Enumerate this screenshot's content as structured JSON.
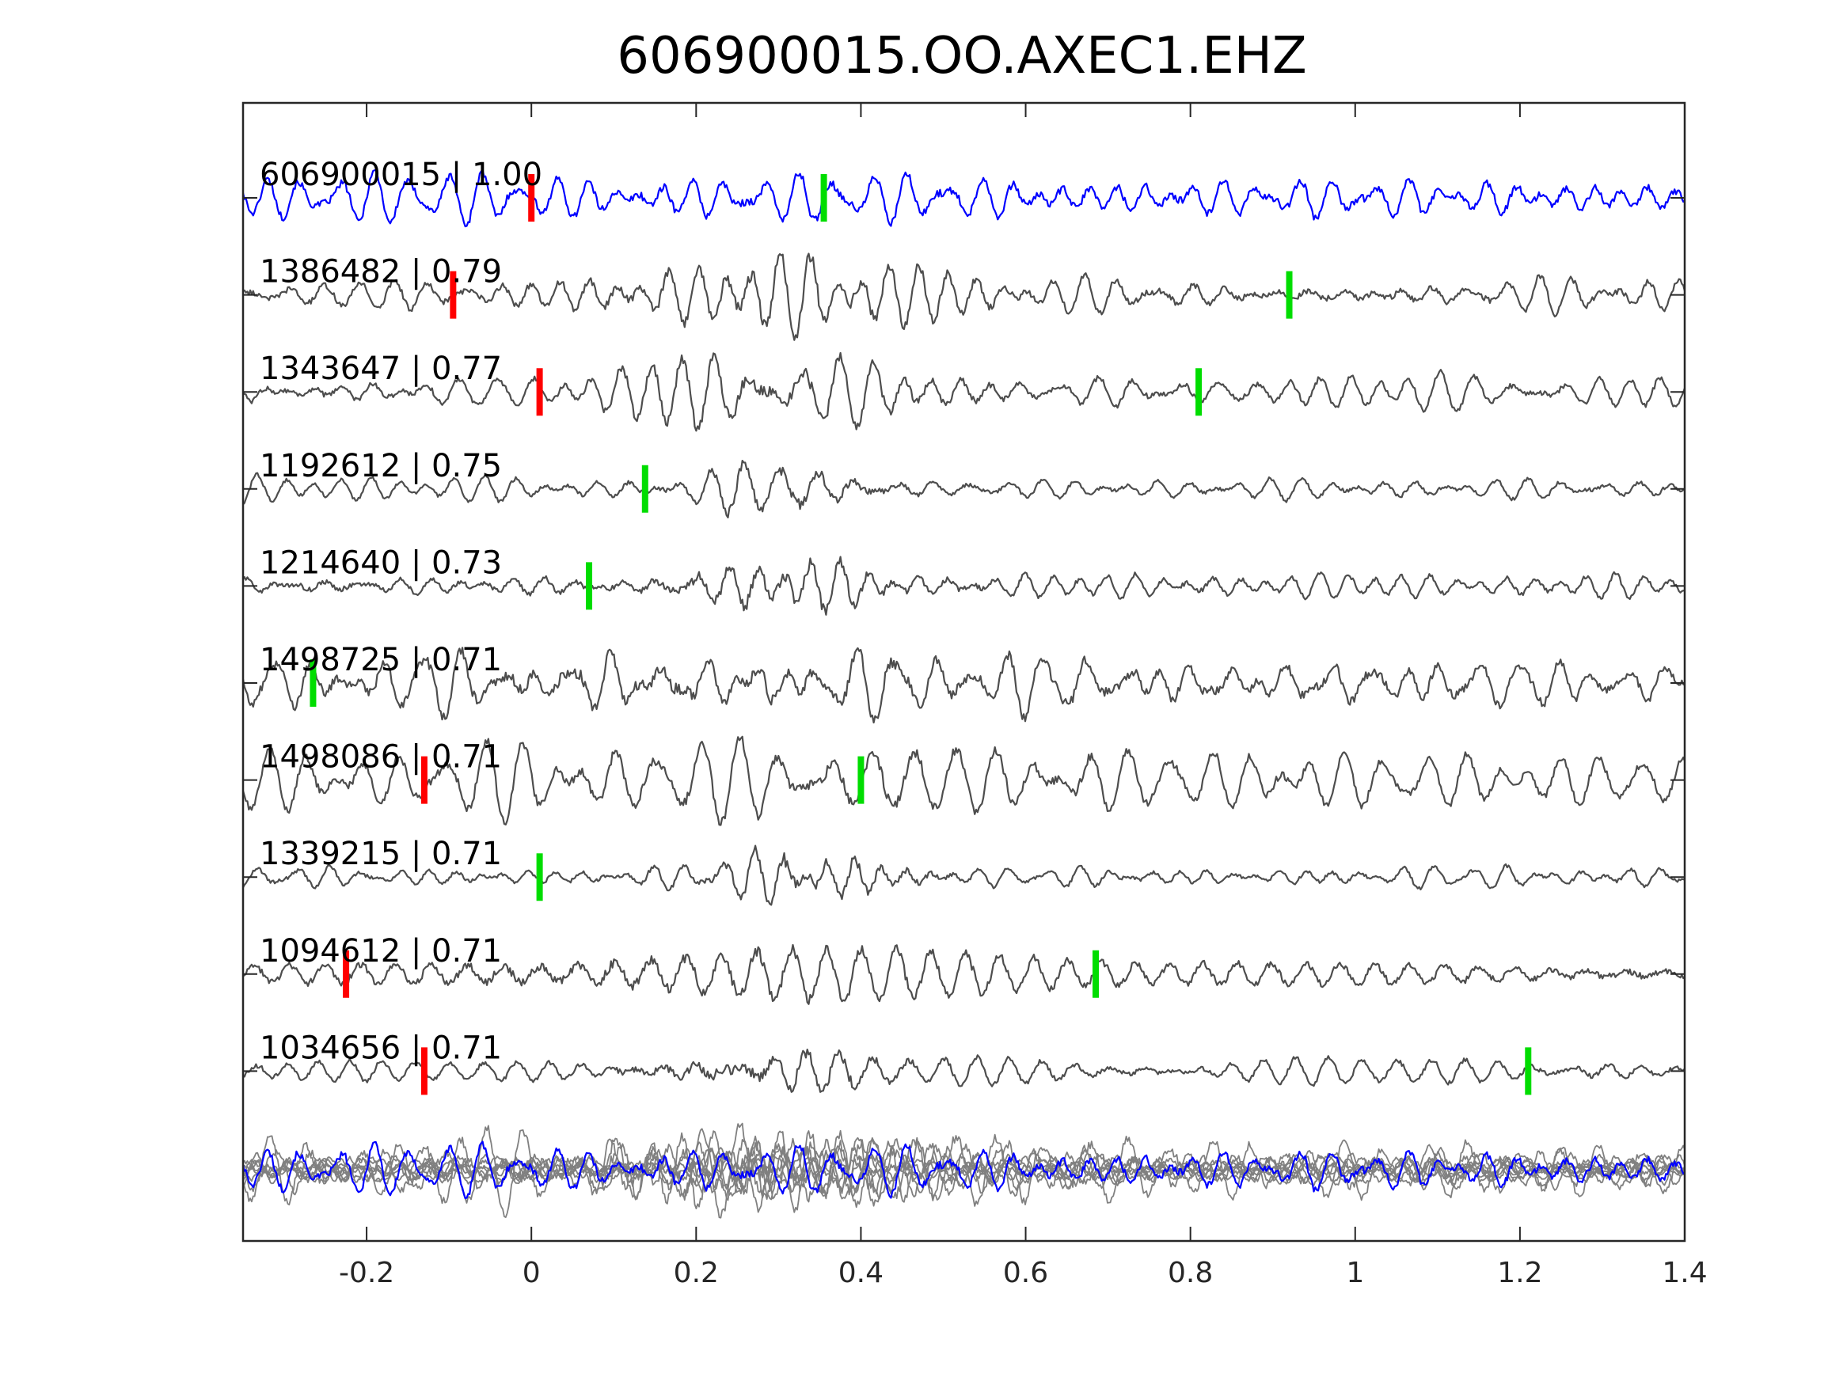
{
  "chart_data": {
    "type": "line",
    "title": "606900015.OO.AXEC1.EHZ",
    "xlabel": "",
    "ylabel": "",
    "xlim": [
      -0.35,
      1.4
    ],
    "xticks": [
      -0.2,
      0,
      0.2,
      0.4,
      0.6,
      0.8,
      1,
      1.2,
      1.4
    ],
    "xtick_labels": [
      "-0.2",
      "0",
      "0.2",
      "0.4",
      "0.6",
      "0.8",
      "1",
      "1.2",
      "1.4"
    ],
    "grid": false,
    "legend": "none",
    "colors": {
      "template_trace": "#0000ff",
      "match_trace": "#4d4d4d",
      "stack_trace": "#808080",
      "p_pick": "#ff0000",
      "s_pick": "#00dd00",
      "axes": "#262626"
    },
    "series": [
      {
        "label": "606900015 | 1.00",
        "role": "template",
        "p_pick": 0.0,
        "s_pick": 0.355,
        "amplitude": 0.26,
        "burst_center": 0.3,
        "burst_width": 0.7,
        "burst_gain": 0.1
      },
      {
        "label": "1386482 | 0.79",
        "role": "match",
        "p_pick": -0.095,
        "s_pick": 0.92,
        "amplitude": 0.34,
        "burst_center": 0.33,
        "burst_width": 0.18,
        "burst_gain": 1.3
      },
      {
        "label": "1343647 | 0.77",
        "role": "match",
        "p_pick": 0.01,
        "s_pick": 0.81,
        "amplitude": 0.32,
        "burst_center": 0.28,
        "burst_width": 0.17,
        "burst_gain": 1.4
      },
      {
        "label": "1192612 | 0.75",
        "role": "match",
        "p_pick": null,
        "s_pick": 0.138,
        "amplitude": 0.3,
        "burst_center": 0.3,
        "burst_width": 0.1,
        "burst_gain": 2.6
      },
      {
        "label": "1214640 | 0.73",
        "role": "match",
        "p_pick": null,
        "s_pick": 0.07,
        "amplitude": 0.32,
        "burst_center": 0.3,
        "burst_width": 0.14,
        "burst_gain": 1.8
      },
      {
        "label": "1498725 | 0.71",
        "role": "match",
        "p_pick": null,
        "s_pick": -0.265,
        "amplitude": 0.35,
        "burst_center": 0.3,
        "burst_width": 0.5,
        "burst_gain": 0.5
      },
      {
        "label": "1498086 | 0.71",
        "role": "match",
        "p_pick": -0.13,
        "s_pick": 0.4,
        "amplitude": 0.3,
        "burst_center": 0.3,
        "burst_width": 0.45,
        "burst_gain": 0.6
      },
      {
        "label": "1339215 | 0.71",
        "role": "match",
        "p_pick": null,
        "s_pick": 0.01,
        "amplitude": 0.3,
        "burst_center": 0.33,
        "burst_width": 0.11,
        "burst_gain": 2.6
      },
      {
        "label": "1094612 | 0.71",
        "role": "match",
        "p_pick": -0.225,
        "s_pick": 0.685,
        "amplitude": 0.3,
        "burst_center": 0.3,
        "burst_width": 0.35,
        "burst_gain": 0.8
      },
      {
        "label": "1034656 | 0.71",
        "role": "match",
        "p_pick": -0.13,
        "s_pick": 1.21,
        "amplitude": 0.3,
        "burst_center": 0.3,
        "burst_width": 0.14,
        "burst_gain": 1.8
      }
    ],
    "stack": {
      "role": "overlay",
      "amplitude": 0.32
    }
  }
}
